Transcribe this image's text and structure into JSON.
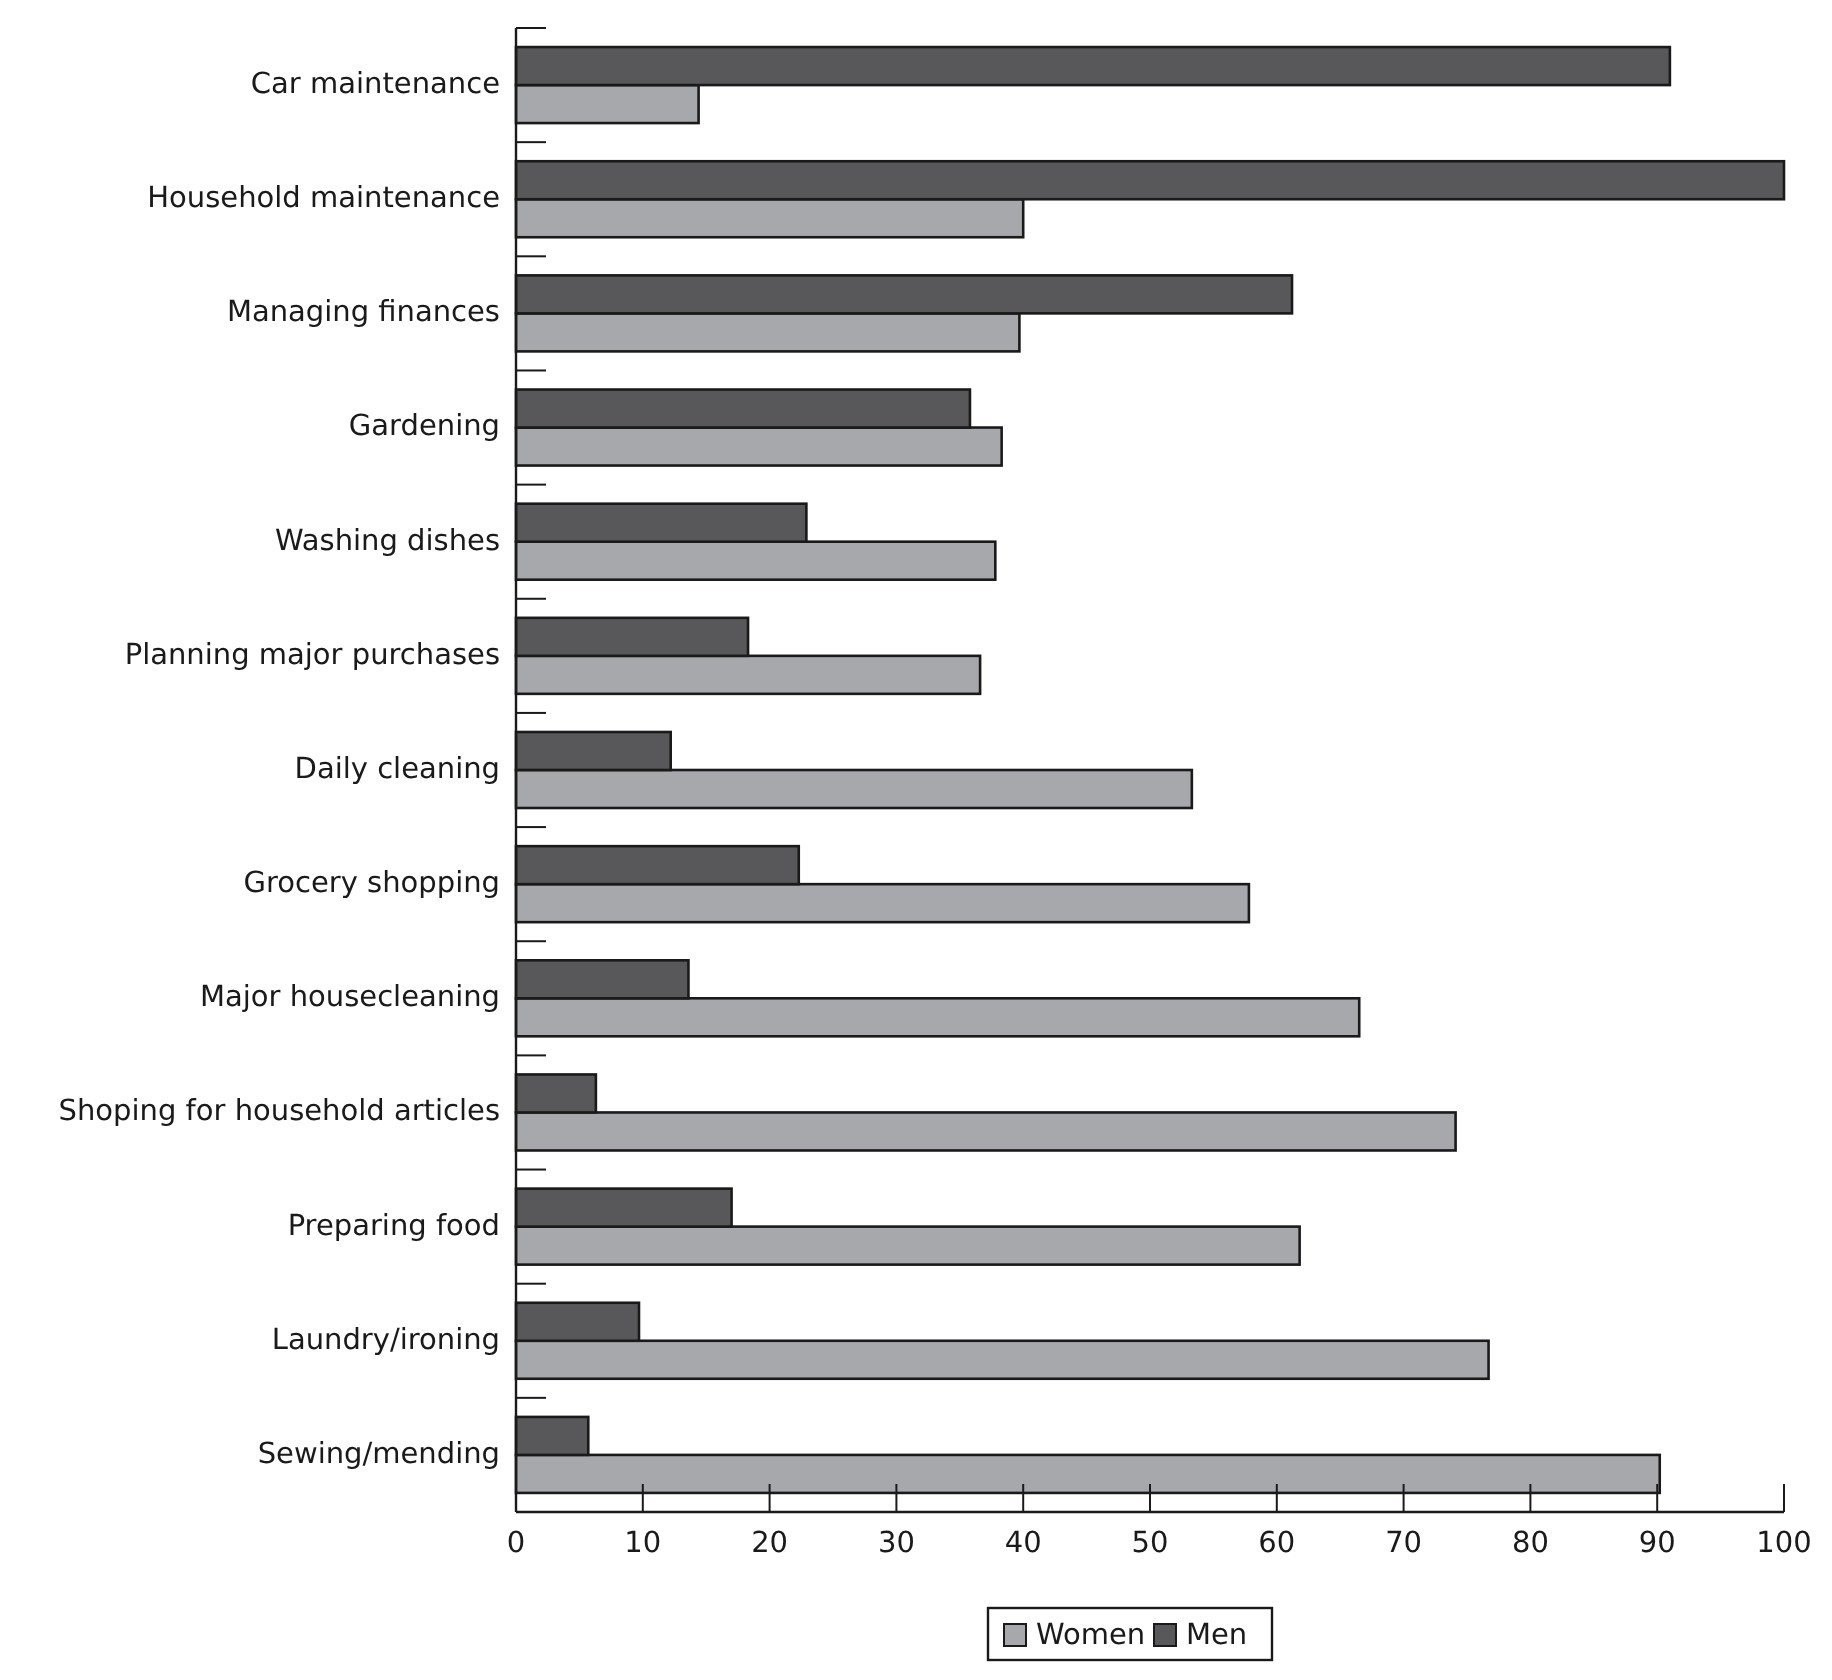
{
  "chart_data": {
    "type": "bar",
    "orientation": "horizontal",
    "categories": [
      "Car maintenance",
      "Household maintenance",
      "Managing finances",
      "Gardening",
      "Washing dishes",
      "Planning major purchases",
      "Daily cleaning",
      "Grocery shopping",
      "Major housecleaning",
      "Shoping for household articles",
      "Preparing food",
      "Laundry/ironing",
      "Sewing/mending"
    ],
    "series": [
      {
        "name": "Women",
        "color": "#a7a8ab",
        "values": [
          14.4,
          40,
          39.7,
          38.3,
          37.8,
          36.6,
          53.3,
          57.8,
          66.5,
          74.1,
          61.8,
          76.7,
          90.2
        ]
      },
      {
        "name": "Men",
        "color": "#58585a",
        "values": [
          91,
          100,
          61.2,
          35.8,
          22.9,
          18.3,
          12.2,
          22.3,
          13.6,
          6.3,
          17,
          9.7,
          5.7
        ]
      }
    ],
    "xlim": [
      0,
      100
    ],
    "xticks": [
      0,
      10,
      20,
      30,
      40,
      50,
      60,
      70,
      80,
      90,
      100
    ],
    "grid": false,
    "legend": "bottom"
  }
}
